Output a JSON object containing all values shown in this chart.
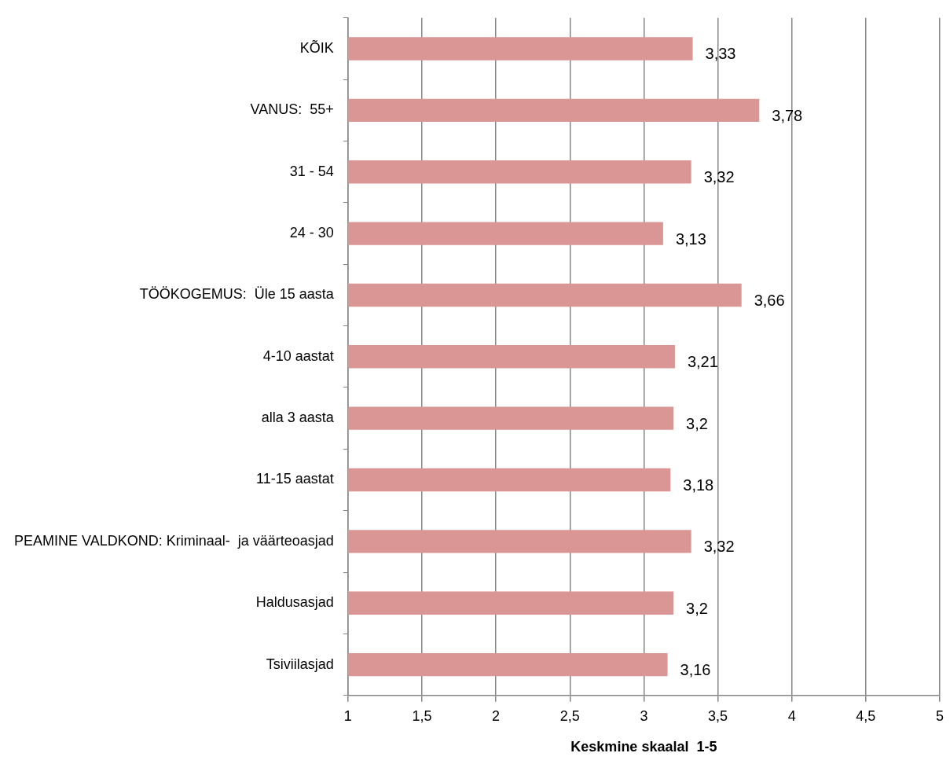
{
  "chart_data": {
    "type": "bar",
    "orientation": "horizontal",
    "xlabel": "Keskmine skaalal  1-5",
    "categories": [
      "KÕIK",
      "VANUS:  55+",
      "31 - 54",
      "24 - 30",
      "TÖÖKOGEMUS:  Üle 15 aasta",
      "4-10 aastat",
      "alla 3 aasta",
      "11-15 aastat",
      "PEAMINE VALDKOND: Kriminaal-  ja väärteoasjad",
      "Haldusasjad",
      "Tsiviilasjad"
    ],
    "values": [
      3.33,
      3.78,
      3.32,
      3.13,
      3.66,
      3.21,
      3.2,
      3.18,
      3.32,
      3.2,
      3.16
    ],
    "value_labels": [
      "3,33",
      "3,78",
      "3,32",
      "3,13",
      "3,66",
      "3,21",
      "3,2",
      "3,18",
      "3,32",
      "3,2",
      "3,16"
    ],
    "color": "#d99694",
    "xlim": [
      1,
      5
    ],
    "xticks": [
      1,
      {
        "value": 1.5,
        "label": "1,5"
      },
      2,
      {
        "value": 2.5,
        "label": "2,5"
      },
      3,
      {
        "value": 3.5,
        "label": "3,5"
      },
      4,
      {
        "value": 4.5,
        "label": "4,5"
      },
      5
    ],
    "grid": "x",
    "legend": false
  }
}
